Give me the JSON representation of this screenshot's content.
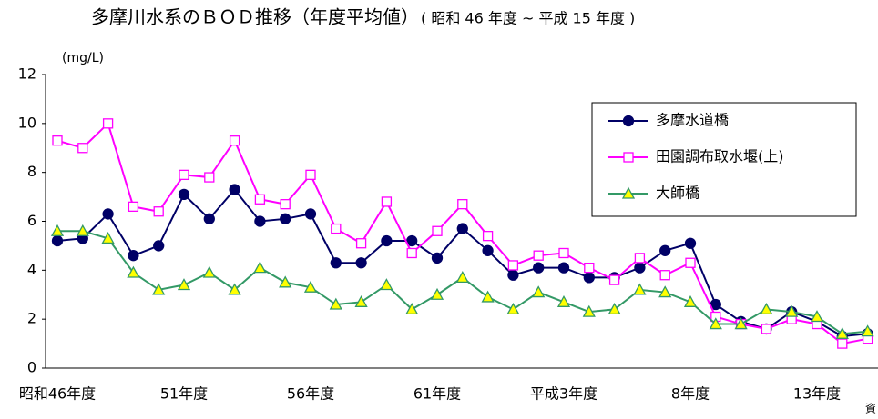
{
  "chart_data": {
    "type": "line",
    "title": "多摩川水系のＢＯＤ推移（年度平均値）",
    "subtitle": "( 昭和 46 年度 ~ 平成 15 年度 )",
    "y_label": "(mg/L)",
    "source": "資",
    "categories": [
      "昭和46年度",
      null,
      null,
      null,
      null,
      "51年度",
      null,
      null,
      null,
      null,
      "56年度",
      null,
      null,
      null,
      null,
      "61年度",
      null,
      null,
      null,
      null,
      "平成3年度",
      null,
      null,
      null,
      null,
      "8年度",
      null,
      null,
      null,
      null,
      "13年度",
      null,
      null
    ],
    "series": [
      {
        "name": "多摩水道橋",
        "color": "#000066",
        "marker": "circle",
        "marker_fill": "#000066",
        "values": [
          5.2,
          5.3,
          6.3,
          4.6,
          5.0,
          7.1,
          6.1,
          7.3,
          6.0,
          6.1,
          6.3,
          4.3,
          4.3,
          5.2,
          5.2,
          4.5,
          5.7,
          4.8,
          3.8,
          4.1,
          4.1,
          3.7,
          3.7,
          4.1,
          4.8,
          5.1,
          2.6,
          1.9,
          1.6,
          2.3,
          1.9,
          1.3,
          1.4
        ]
      },
      {
        "name": "田園調布取水堰(上)",
        "color": "#ff00ff",
        "marker": "square",
        "marker_fill": "#ffffff",
        "values": [
          9.3,
          9.0,
          10.0,
          6.6,
          6.4,
          7.9,
          7.8,
          9.3,
          6.9,
          6.7,
          7.9,
          5.7,
          5.1,
          6.8,
          4.7,
          5.6,
          6.7,
          5.4,
          4.2,
          4.6,
          4.7,
          4.1,
          3.6,
          4.5,
          3.8,
          4.3,
          2.1,
          1.8,
          1.6,
          2.0,
          1.8,
          1.0,
          1.2
        ]
      },
      {
        "name": "大師橋",
        "color": "#339966",
        "marker": "triangle",
        "marker_fill": "#ffff00",
        "values": [
          5.6,
          5.6,
          5.3,
          3.9,
          3.2,
          3.4,
          3.9,
          3.2,
          4.1,
          3.5,
          3.3,
          2.6,
          2.7,
          3.4,
          2.4,
          3.0,
          3.7,
          2.9,
          2.4,
          3.1,
          2.7,
          2.3,
          2.4,
          3.2,
          3.1,
          2.7,
          1.8,
          1.8,
          2.4,
          2.3,
          2.1,
          1.4,
          1.5
        ]
      }
    ],
    "ylim": [
      0,
      12
    ],
    "yticks": [
      0,
      2,
      4,
      6,
      8,
      10,
      12
    ],
    "grid": false
  }
}
